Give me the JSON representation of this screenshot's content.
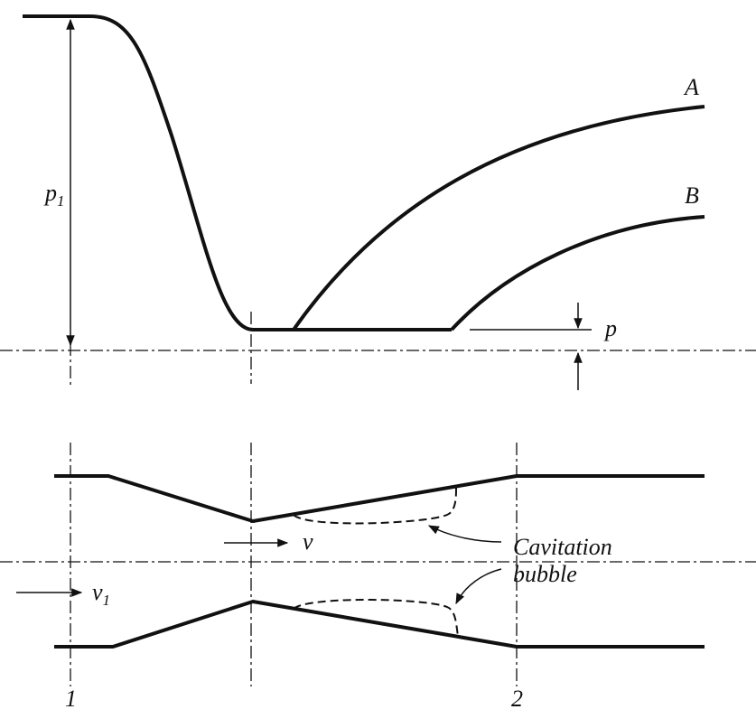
{
  "labels": {
    "curve_a": "A",
    "curve_b": "B",
    "p1": {
      "symbol": "p",
      "sub": "1"
    },
    "p": "p",
    "v": "v",
    "v1": {
      "symbol": "v",
      "sub": "1"
    },
    "bubble": [
      "Cavitation",
      "bubble"
    ],
    "station_1": "1",
    "station_2": "2"
  }
}
